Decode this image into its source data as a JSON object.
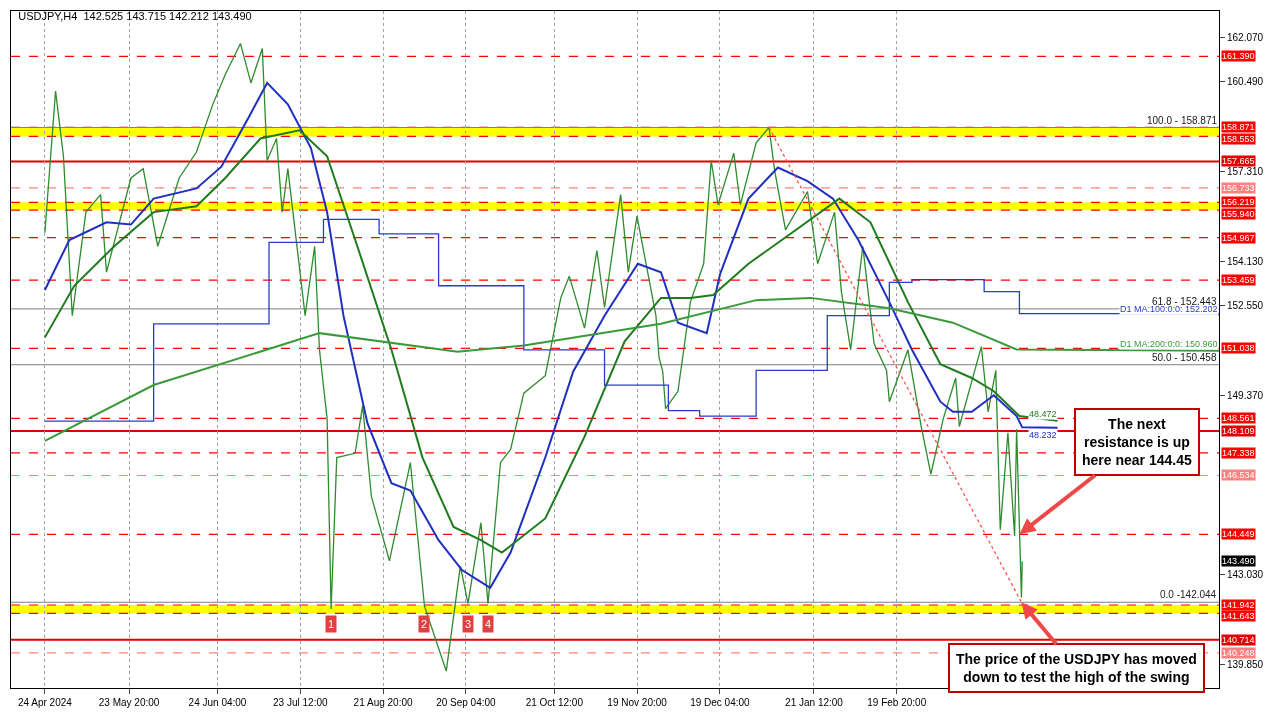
{
  "chart_data": {
    "type": "line",
    "title": "USDJPY,H4  142.525 143.715 142.212 143.490",
    "xlim": [
      "2024-04-12",
      "2025-06-14T00:00"
    ],
    "xticks": [
      {
        "value": "2024-04-24T00:00",
        "label": "24 Apr 2024"
      },
      {
        "value": "2024-05-23T20:00",
        "label": "23 May 20:00"
      },
      {
        "value": "2024-06-24T04:00",
        "label": "24 Jun 04:00"
      },
      {
        "value": "2024-07-23T12:00",
        "label": "23 Jul 12:00"
      },
      {
        "value": "2024-08-21T20:00",
        "label": "21 Aug 20:00"
      },
      {
        "value": "2024-09-20T04:00",
        "label": "20 Sep 04:00"
      },
      {
        "value": "2024-10-21T12:00",
        "label": "21 Oct 12:00"
      },
      {
        "value": "2024-11-19T20:00",
        "label": "19 Nov 20:00"
      },
      {
        "value": "2024-12-19T04:00",
        "label": "19 Dec 04:00"
      },
      {
        "value": "2025-01-21T12:00",
        "label": "21 Jan 12:00"
      },
      {
        "value": "2025-02-19T20:00",
        "label": "19 Feb 20:00"
      }
    ],
    "ylim": [
      139.0,
      163.0
    ],
    "yticks": [
      {
        "value": 162.07,
        "label": "162.070"
      },
      {
        "value": 160.49,
        "label": "160.490"
      },
      {
        "value": 157.31,
        "label": "157.310"
      },
      {
        "value": 154.13,
        "label": "154.130"
      },
      {
        "value": 152.55,
        "label": "152.550"
      },
      {
        "value": 149.37,
        "label": "149.370"
      },
      {
        "value": 143.03,
        "label": "143.030"
      },
      {
        "value": 139.85,
        "label": "139.850"
      }
    ],
    "grid": "x",
    "legend": false,
    "marker": "none",
    "series": [
      {
        "color": "#2e8b2e",
        "line_style": "solid",
        "x": [
          "2024-04-24T00:00",
          "2024-04-27T19:00",
          "2024-04-30T14:00",
          "2024-05-03T17:00",
          "2024-05-08T13:00",
          "2024-05-13T18:00",
          "2024-05-15T20:00",
          "2024-05-24T12:00",
          "2024-05-28T20:00",
          "2024-06-03T00:00",
          "2024-06-10T14:00",
          "2024-06-16T17:00",
          "2024-06-22T12:00",
          "2024-06-26T22:00",
          "2024-07-02T07:00",
          "2024-07-06T00:00",
          "2024-07-10T01:00",
          "2024-07-11T18:00",
          "2024-07-15T02:00",
          "2024-07-17T02:00",
          "2024-07-19T02:00",
          "2024-07-25T05:00",
          "2024-07-28T14:00",
          "2024-07-30T07:00",
          "2024-08-02T00:00",
          "2024-08-03T10:00",
          "2024-08-05T10:00",
          "2024-08-11T22:00",
          "2024-08-14T14:00",
          "2024-08-17T17:00",
          "2024-08-24T02:00",
          "2024-08-31T12:00",
          "2024-09-05T12:00",
          "2024-09-13T05:00",
          "2024-09-18T05:00",
          "2024-09-20T22:00",
          "2024-09-25T12:00",
          "2024-09-28T00:00",
          "2024-10-02T10:00",
          "2024-10-06T00:00",
          "2024-10-10T17:00",
          "2024-10-18T07:00",
          "2024-10-23T19:00",
          "2024-10-26T19:00",
          "2024-11-01T05:00",
          "2024-11-05T14:00",
          "2024-11-08T07:00",
          "2024-11-14T00:00",
          "2024-11-16T17:00",
          "2024-11-19T19:00",
          "2024-11-26T12:00",
          "2024-11-27T14:00",
          "2024-11-28T22:00",
          "2024-11-29T22:00",
          "2024-12-04T07:00",
          "2024-12-08T17:00",
          "2024-12-13T10:00",
          "2024-12-16T02:00",
          "2024-12-18T12:00",
          "2024-12-24T02:00",
          "2024-12-26T10:00",
          "2025-01-01T00:00",
          "2025-01-05T14:00",
          "2025-01-07T14:00",
          "2025-01-11T10:00",
          "2025-01-19T05:00",
          "2025-01-22T19:00",
          "2025-01-28T19:00",
          "2025-01-31T05:00",
          "2025-02-03T12:00",
          "2025-02-07T19:00",
          "2025-02-11T19:00",
          "2025-02-16T05:00",
          "2025-02-17T05:00",
          "2025-02-23T19:00",
          "2025-02-28T12:00",
          "2025-03-03T22:00",
          "2025-03-08T07:00",
          "2025-03-12T17:00",
          "2025-03-14T00:00",
          "2025-03-21T19:00",
          "2025-03-24T05:00",
          "2025-03-26T22:00",
          "2025-03-28T12:00",
          "2025-03-31T05:00",
          "2025-04-02T14:00",
          "2025-04-03T07:00",
          "2025-04-05T00:00",
          "2025-04-05T07:00"
        ],
        "values": [
          155.14,
          160.16,
          157.85,
          152.2,
          155.87,
          156.49,
          153.74,
          157.08,
          157.41,
          154.66,
          157.08,
          158.0,
          159.69,
          160.75,
          161.85,
          160.45,
          161.67,
          157.7,
          158.48,
          155.87,
          157.41,
          152.2,
          154.66,
          150.99,
          148.54,
          141.8,
          147.17,
          147.32,
          149.01,
          145.78,
          143.51,
          146.99,
          141.9,
          139.6,
          143.32,
          142.0,
          144.86,
          142.0,
          146.99,
          147.46,
          149.45,
          150.07,
          152.83,
          153.6,
          151.76,
          154.51,
          152.49,
          156.49,
          153.74,
          155.73,
          152.2,
          150.73,
          150.22,
          148.9,
          149.52,
          152.68,
          154.04,
          157.7,
          156.13,
          157.96,
          156.13,
          158.33,
          158.87,
          157.33,
          155.24,
          156.6,
          154.04,
          155.87,
          153.05,
          150.99,
          154.66,
          151.21,
          150.26,
          149.15,
          150.99,
          148.27,
          146.58,
          148.54,
          149.99,
          148.27,
          151.1,
          148.79,
          150.26,
          144.61,
          148.05,
          144.39,
          148.17,
          142.21,
          143.49
        ]
      },
      {
        "name": "48.232",
        "color": "#1f2fbf",
        "line_style": "solid",
        "x": [
          "2024-04-24T00:00",
          "2024-05-02T16:00",
          "2024-05-15T20:00",
          "2024-05-24T12:00",
          "2024-06-01T13:00",
          "2024-06-16T17:00",
          "2024-06-25T13:00",
          "2024-07-05T08:00",
          "2024-07-11T18:00",
          "2024-07-19T02:00",
          "2024-07-27T06:00",
          "2024-08-02T00:00",
          "2024-08-07T19:00",
          "2024-08-16T07:00",
          "2024-08-24T19:00",
          "2024-08-31T12:00",
          "2024-09-10T12:00",
          "2024-09-18T19:00",
          "2024-09-28T19:00",
          "2024-10-06T00:00",
          "2024-10-18T07:00",
          "2024-10-28T05:00",
          "2024-11-08T07:00",
          "2024-11-20T02:00",
          "2024-11-28T07:00",
          "2024-12-04T07:00",
          "2024-12-14T12:00",
          "2024-12-19T05:00",
          "2024-12-29T07:00",
          "2025-01-08T17:00",
          "2025-01-19T05:00",
          "2025-01-28T05:00",
          "2025-02-06T05:00",
          "2025-02-17T05:00",
          "2025-02-25T05:00",
          "2025-03-07T07:00",
          "2025-03-11T17:00",
          "2025-03-18T10:00",
          "2025-03-26T05:00",
          "2025-04-03T07:00",
          "2025-04-05T07:00",
          "2025-04-17T19:00"
        ],
        "values": [
          153.11,
          154.88,
          155.51,
          155.43,
          156.35,
          156.71,
          157.48,
          159.25,
          160.45,
          159.69,
          158.14,
          155.87,
          152.2,
          148.39,
          146.26,
          146.0,
          144.24,
          143.18,
          142.55,
          143.8,
          147.17,
          150.22,
          152.2,
          154.04,
          153.74,
          151.95,
          151.58,
          153.67,
          156.35,
          157.45,
          156.97,
          156.35,
          154.88,
          152.68,
          150.99,
          149.15,
          148.79,
          148.79,
          149.38,
          148.64,
          148.24,
          148.23
        ]
      },
      {
        "name": "48.472",
        "color": "#1e7b1e",
        "line_style": "solid",
        "x": [
          "2024-04-24T00:00",
          "2024-05-04T10:00",
          "2024-05-18T14:00",
          "2024-06-01T13:00",
          "2024-06-16T17:00",
          "2024-06-26T22:00",
          "2024-07-09T10:00",
          "2024-07-23T05:00",
          "2024-08-02T00:00",
          "2024-08-12T17:00",
          "2024-08-24T19:00",
          "2024-09-04T19:00",
          "2024-09-15T19:00",
          "2024-09-25T12:00",
          "2024-10-02T22:00",
          "2024-10-18T07:00",
          "2024-11-01T05:00",
          "2024-11-15T10:00",
          "2024-11-28T07:00",
          "2024-12-08T17:00",
          "2024-12-16T19:00",
          "2024-12-29T07:00",
          "2025-01-13T17:00",
          "2025-01-30T12:00",
          "2025-02-10T12:00",
          "2025-02-23T19:00",
          "2025-03-07T07:00",
          "2025-03-18T10:00",
          "2025-03-26T05:00",
          "2025-04-04T07:00",
          "2025-04-17T19:00"
        ],
        "values": [
          151.43,
          153.26,
          154.66,
          155.87,
          156.08,
          157.08,
          158.48,
          158.77,
          157.85,
          154.66,
          150.99,
          147.17,
          144.71,
          144.24,
          143.8,
          145.01,
          147.91,
          151.29,
          152.83,
          152.83,
          152.93,
          154.04,
          155.14,
          156.35,
          155.51,
          152.68,
          150.48,
          149.99,
          149.52,
          148.64,
          148.47
        ]
      },
      {
        "name": "D1 MA:100:0:0: 152.202",
        "color": "#2b3bd0",
        "type": "step",
        "line_style": "solid",
        "x": [
          "2024-04-24T00:00",
          "2024-06-01T13:00",
          "2024-07-12T10:00",
          "2024-07-31T17:00",
          "2024-08-20T10:00",
          "2024-09-10T12:00",
          "2024-10-10T17:00",
          "2024-11-08T07:00",
          "2024-11-30T22:00",
          "2024-12-12T00:00",
          "2025-01-01T00:00",
          "2025-01-26T05:00",
          "2025-02-17T05:00",
          "2025-02-25T05:00",
          "2025-03-22T19:00",
          "2025-04-04T07:00",
          "2025-06-14T00:00"
        ],
        "values": [
          148.46,
          151.91,
          154.8,
          155.61,
          155.1,
          153.26,
          150.99,
          149.74,
          148.83,
          148.64,
          150.26,
          152.2,
          153.38,
          153.48,
          153.05,
          152.27,
          152.2
        ]
      },
      {
        "name": "D1 MA:200:0:0: 150.960",
        "color": "#3a9a3a",
        "line_style": "solid",
        "x": [
          "2024-04-24T00:00",
          "2024-06-01T13:00",
          "2024-07-30T07:00",
          "2024-09-17T05:00",
          "2024-10-10T17:00",
          "2024-11-28T07:00",
          "2025-01-01T00:00",
          "2025-01-20T07:00",
          "2025-02-17T05:00",
          "2025-03-11T17:00",
          "2025-04-03T07:00",
          "2025-06-14T00:00"
        ],
        "values": [
          147.76,
          149.74,
          151.58,
          150.92,
          151.14,
          151.91,
          152.75,
          152.83,
          152.46,
          151.95,
          151.0,
          150.96
        ]
      },
      {
        "color": "#ff5050",
        "line_style": "dotted",
        "x": [
          "2025-01-05T14:00",
          "2025-04-05T00:00"
        ],
        "values": [
          158.87,
          142.04
        ]
      }
    ],
    "bands": [
      {
        "axis": "y",
        "from": 158.553,
        "to": 158.871,
        "color": "#ffff00"
      },
      {
        "axis": "y",
        "from": 155.94,
        "to": 156.219,
        "color": "#ffff00"
      },
      {
        "axis": "y",
        "from": 141.643,
        "to": 141.942,
        "color": "#ffff00"
      }
    ],
    "ref_lines": [
      {
        "axis": "y",
        "value": 161.39,
        "label": "161.390",
        "color": "#ff0000",
        "line_style": "dashed"
      },
      {
        "axis": "y",
        "value": 158.871,
        "label": "158.871",
        "color": "#ff0000",
        "line_style": "dashed"
      },
      {
        "axis": "y",
        "value": 158.553,
        "label": "158.553",
        "color": "#ff0000",
        "line_style": "dashed"
      },
      {
        "axis": "y",
        "value": 157.665,
        "label": "157.665",
        "color": "#e00000",
        "line_style": "solid"
      },
      {
        "axis": "y",
        "value": 156.733,
        "label": "156.733",
        "color": "#ff8080",
        "line_style": "dashed"
      },
      {
        "axis": "y",
        "value": 156.219,
        "label": "156.219",
        "color": "#ff0000",
        "line_style": "dashed"
      },
      {
        "axis": "y",
        "value": 155.94,
        "label": "155.940",
        "color": "#ff0000",
        "line_style": "dashed"
      },
      {
        "axis": "y",
        "value": 154.967,
        "label": "154.967",
        "color": "#ff0000",
        "line_style": "dashed"
      },
      {
        "axis": "y",
        "value": 153.459,
        "label": "153.459",
        "color": "#ff0000",
        "line_style": "dashed"
      },
      {
        "axis": "y",
        "value": 151.038,
        "label": "151.038",
        "color": "#ff0000",
        "line_style": "dashed"
      },
      {
        "axis": "y",
        "value": 148.561,
        "label": "148.561",
        "color": "#ff0000",
        "line_style": "dashed"
      },
      {
        "axis": "y",
        "value": 148.109,
        "label": "148.109",
        "color": "#e00000",
        "line_style": "solid"
      },
      {
        "axis": "y",
        "value": 147.338,
        "label": "147.338",
        "color": "#ff0000",
        "line_style": "dashed"
      },
      {
        "axis": "y",
        "value": 146.534,
        "label": "146.534",
        "color": "#ff8080",
        "line_style": "dashed"
      },
      {
        "axis": "y",
        "value": 144.449,
        "label": "144.449",
        "color": "#ff0000",
        "line_style": "dashed"
      },
      {
        "axis": "y",
        "value": 141.942,
        "label": "141.942",
        "color": "#ff0000",
        "line_style": "dashed"
      },
      {
        "axis": "y",
        "value": 141.643,
        "label": "141.643",
        "color": "#ff0000",
        "line_style": "dashed"
      },
      {
        "axis": "y",
        "value": 140.714,
        "label": "140.714",
        "color": "#e00000",
        "line_style": "solid"
      },
      {
        "axis": "y",
        "value": 140.248,
        "label": "140.248",
        "color": "#ff8080",
        "line_style": "dashed"
      },
      {
        "axis": "y",
        "value": 158.87,
        "color": "#808080",
        "line_style": "solid"
      },
      {
        "axis": "y",
        "value": 152.44,
        "color": "#808080",
        "line_style": "solid"
      },
      {
        "axis": "y",
        "value": 150.46,
        "color": "#808080",
        "line_style": "solid"
      },
      {
        "axis": "y",
        "value": 142.04,
        "color": "#808080",
        "line_style": "solid"
      }
    ],
    "annotations": [
      {
        "text": "1",
        "x": "2024-08-03T10:00",
        "y": 141.27
      },
      {
        "text": "2",
        "x": "2024-09-05T12:00",
        "y": 141.27
      },
      {
        "text": "3",
        "x": "2024-09-20T22:00",
        "y": 141.27
      },
      {
        "text": "4",
        "x": "2024-09-28T00:00",
        "y": 141.27
      },
      {
        "text": "100.0 - 158.871",
        "x": "2025-06-14T00:00",
        "y": 158.87
      },
      {
        "text": "61.8 - 152.443",
        "x": "2025-06-14T00:00",
        "y": 152.44
      },
      {
        "text": "50.0 - 150.458",
        "x": "2025-06-14T00:00",
        "y": 150.46
      },
      {
        "text": "0.0 -142.044",
        "x": "2025-06-14T00:00",
        "y": 142.04
      },
      {
        "text": "The next\nresistance is up\nhere near 144.45",
        "x": "2025-04-04T07:00",
        "y": 144.449
      },
      {
        "text": "The price of the USDJPY has moved\ndown to test the high of the swing",
        "x": "2025-04-05T00:00",
        "y": 142.04
      },
      {
        "text": "143.490",
        "y": 143.49
      }
    ]
  }
}
